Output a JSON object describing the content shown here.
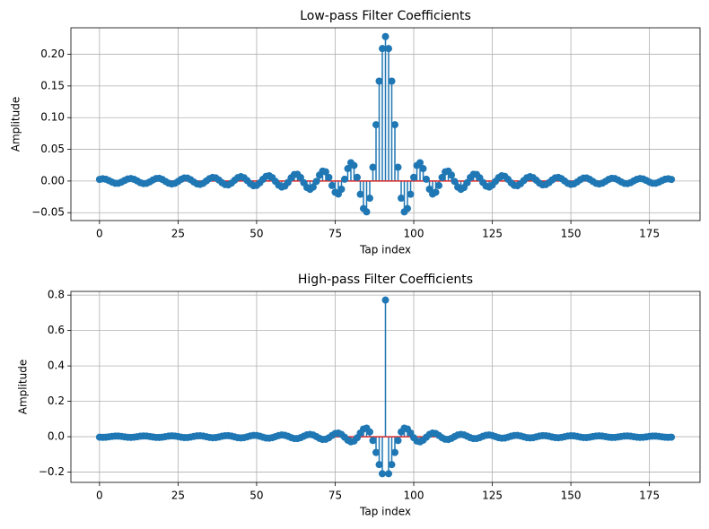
{
  "chart_data": [
    {
      "type": "stem",
      "title": "Low-pass Filter Coefficients",
      "xlabel": "Tap index",
      "ylabel": "Amplitude",
      "x": [
        0,
        1,
        2,
        3,
        4,
        5,
        6,
        7,
        8,
        9,
        10,
        11,
        12,
        13,
        14,
        15,
        16,
        17,
        18,
        19,
        20,
        21,
        22,
        23,
        24,
        25,
        26,
        27,
        28,
        29,
        30,
        31,
        32,
        33,
        34,
        35,
        36,
        37,
        38,
        39,
        40,
        41,
        42,
        43,
        44,
        45,
        46,
        47,
        48,
        49,
        50,
        51,
        52,
        53,
        54,
        55,
        56,
        57,
        58,
        59,
        60,
        61,
        62,
        63,
        64,
        65,
        66,
        67,
        68,
        69,
        70,
        71,
        72,
        73,
        74,
        75,
        76,
        77,
        78,
        79,
        80,
        81,
        82,
        83,
        84,
        85,
        86,
        87,
        88,
        89,
        90,
        91,
        92,
        93,
        94,
        95,
        96,
        97,
        98,
        99,
        100,
        101,
        102,
        103,
        104,
        105,
        106,
        107,
        108,
        109,
        110,
        111,
        112,
        113,
        114,
        115,
        116,
        117,
        118,
        119,
        120,
        121,
        122,
        123,
        124,
        125,
        126,
        127,
        128,
        129,
        130,
        131,
        132,
        133,
        134,
        135,
        136,
        137,
        138,
        139,
        140,
        141,
        142,
        143,
        144,
        145,
        146,
        147,
        148,
        149,
        150,
        151,
        152,
        153,
        154,
        155,
        156,
        157,
        158,
        159,
        160,
        161,
        162,
        163,
        164,
        165,
        166,
        167,
        168,
        169,
        170,
        171,
        172,
        173,
        174,
        175,
        176,
        177,
        178,
        179,
        180,
        181,
        182
      ],
      "values": [
        0.0025,
        0.0035,
        0.0028,
        0.0007,
        -0.0018,
        -0.0035,
        -0.0035,
        -0.0017,
        0.0009,
        0.0032,
        0.0039,
        0.0027,
        0.0002,
        -0.0026,
        -0.0041,
        -0.0036,
        -0.0013,
        0.0017,
        0.0039,
        0.0043,
        0.0025,
        -0.0006,
        -0.0034,
        -0.0047,
        -0.0036,
        -0.0007,
        0.0026,
        0.0048,
        0.0046,
        0.0021,
        -0.0015,
        -0.0045,
        -0.0053,
        -0.0036,
        0.0001,
        0.0038,
        0.0057,
        0.0049,
        0.0016,
        -0.0027,
        -0.0057,
        -0.0061,
        -0.0033,
        0.0012,
        0.0053,
        0.0069,
        0.0052,
        0.0007,
        -0.0043,
        -0.0074,
        -0.0069,
        -0.0029,
        0.0027,
        0.0073,
        0.0084,
        0.0054,
        -0.0006,
        -0.0066,
        -0.0096,
        -0.008,
        -0.0022,
        0.0051,
        0.0103,
        0.0106,
        0.0055,
        -0.0027,
        -0.0103,
        -0.0132,
        -0.0096,
        -0.0007,
        0.0094,
        0.0156,
        0.0145,
        0.0057,
        -0.0071,
        -0.0178,
        -0.0206,
        -0.0129,
        0.0028,
        0.0196,
        0.0289,
        0.0245,
        0.0058,
        -0.0209,
        -0.0434,
        -0.0486,
        -0.0271,
        0.0217,
        0.0889,
        0.1576,
        0.209,
        0.228,
        0.209,
        0.1576,
        0.0889,
        0.0217,
        -0.0271,
        -0.0486,
        -0.0434,
        -0.0209,
        0.0058,
        0.0245,
        0.0289,
        0.0196,
        0.0028,
        -0.0129,
        -0.0206,
        -0.0178,
        -0.0071,
        0.0057,
        0.0145,
        0.0156,
        0.0094,
        -0.0007,
        -0.0096,
        -0.0132,
        -0.0103,
        -0.0027,
        0.0055,
        0.0106,
        0.0103,
        0.0051,
        -0.0022,
        -0.008,
        -0.0096,
        -0.0066,
        -0.0006,
        0.0054,
        0.0084,
        0.0073,
        0.0027,
        -0.0029,
        -0.0069,
        -0.0074,
        -0.0043,
        0.0007,
        0.0052,
        0.0069,
        0.0053,
        0.0012,
        -0.0033,
        -0.0061,
        -0.0057,
        -0.0027,
        0.0016,
        0.0049,
        0.0057,
        0.0038,
        0.0001,
        -0.0036,
        -0.0053,
        -0.0045,
        -0.0015,
        0.0021,
        0.0046,
        0.0048,
        0.0026,
        -0.0007,
        -0.0036,
        -0.0047,
        -0.0034,
        -0.0006,
        0.0025,
        0.0043,
        0.0039,
        0.0017,
        -0.0013,
        -0.0036,
        -0.0041,
        -0.0026,
        0.0002,
        0.0027,
        0.0039,
        0.0032,
        0.0009,
        -0.0017,
        -0.0035,
        -0.0035,
        -0.0018,
        0.0007,
        0.0028,
        0.0035,
        0.0025
      ],
      "color": "#1f77b4",
      "baseline_color": "#d62728",
      "xlim": [
        -9.1,
        191.1
      ],
      "ylim": [
        -0.0624,
        0.2418
      ],
      "xticks": [
        0,
        25,
        50,
        75,
        100,
        125,
        150,
        175
      ],
      "yticks": [
        {
          "value": -0.05,
          "label": "−0.05"
        },
        {
          "value": 0,
          "label": "0.00"
        },
        {
          "value": 0.05,
          "label": "0.05"
        },
        {
          "value": 0.1,
          "label": "0.10"
        },
        {
          "value": 0.15,
          "label": "0.15"
        },
        {
          "value": 0.2,
          "label": "0.20"
        }
      ],
      "grid": true
    },
    {
      "type": "stem",
      "title": "High-pass Filter Coefficients",
      "xlabel": "Tap index",
      "ylabel": "Amplitude",
      "x": [
        0,
        1,
        2,
        3,
        4,
        5,
        6,
        7,
        8,
        9,
        10,
        11,
        12,
        13,
        14,
        15,
        16,
        17,
        18,
        19,
        20,
        21,
        22,
        23,
        24,
        25,
        26,
        27,
        28,
        29,
        30,
        31,
        32,
        33,
        34,
        35,
        36,
        37,
        38,
        39,
        40,
        41,
        42,
        43,
        44,
        45,
        46,
        47,
        48,
        49,
        50,
        51,
        52,
        53,
        54,
        55,
        56,
        57,
        58,
        59,
        60,
        61,
        62,
        63,
        64,
        65,
        66,
        67,
        68,
        69,
        70,
        71,
        72,
        73,
        74,
        75,
        76,
        77,
        78,
        79,
        80,
        81,
        82,
        83,
        84,
        85,
        86,
        87,
        88,
        89,
        90,
        91,
        92,
        93,
        94,
        95,
        96,
        97,
        98,
        99,
        100,
        101,
        102,
        103,
        104,
        105,
        106,
        107,
        108,
        109,
        110,
        111,
        112,
        113,
        114,
        115,
        116,
        117,
        118,
        119,
        120,
        121,
        122,
        123,
        124,
        125,
        126,
        127,
        128,
        129,
        130,
        131,
        132,
        133,
        134,
        135,
        136,
        137,
        138,
        139,
        140,
        141,
        142,
        143,
        144,
        145,
        146,
        147,
        148,
        149,
        150,
        151,
        152,
        153,
        154,
        155,
        156,
        157,
        158,
        159,
        160,
        161,
        162,
        163,
        164,
        165,
        166,
        167,
        168,
        169,
        170,
        171,
        172,
        173,
        174,
        175,
        176,
        177,
        178,
        179,
        180,
        181,
        182
      ],
      "values": [
        -0.0025,
        -0.0035,
        -0.0028,
        -0.0007,
        0.0018,
        0.0035,
        0.0035,
        0.0017,
        -0.0009,
        -0.0032,
        -0.0039,
        -0.0027,
        -0.0002,
        0.0026,
        0.0041,
        0.0036,
        0.0013,
        -0.0017,
        -0.0039,
        -0.0043,
        -0.0025,
        0.0006,
        0.0034,
        0.0047,
        0.0036,
        0.0007,
        -0.0026,
        -0.0048,
        -0.0046,
        -0.0021,
        0.0015,
        0.0045,
        0.0053,
        0.0036,
        -0.0001,
        -0.0038,
        -0.0057,
        -0.0049,
        -0.0016,
        0.0027,
        0.0057,
        0.0061,
        0.0033,
        -0.0012,
        -0.0053,
        -0.0069,
        -0.0052,
        -0.0007,
        0.0043,
        0.0074,
        0.0069,
        0.0029,
        -0.0027,
        -0.0073,
        -0.0084,
        -0.0054,
        0.0006,
        0.0066,
        0.0096,
        0.008,
        0.0022,
        -0.0051,
        -0.0103,
        -0.0106,
        -0.0055,
        0.0027,
        0.0103,
        0.0132,
        0.0096,
        0.0007,
        -0.0094,
        -0.0156,
        -0.0145,
        -0.0057,
        0.0071,
        0.0178,
        0.0206,
        0.0129,
        -0.0028,
        -0.0196,
        -0.0289,
        -0.0245,
        -0.0058,
        0.0209,
        0.0434,
        0.0486,
        0.0271,
        -0.0217,
        -0.0889,
        -0.1576,
        -0.209,
        0.772,
        -0.209,
        -0.1576,
        -0.0889,
        -0.0217,
        0.0271,
        0.0486,
        0.0434,
        0.0209,
        -0.0058,
        -0.0245,
        -0.0289,
        -0.0196,
        -0.0028,
        0.0129,
        0.0206,
        0.0178,
        0.0071,
        -0.0057,
        -0.0145,
        -0.0156,
        -0.0094,
        0.0007,
        0.0096,
        0.0132,
        0.0103,
        0.0027,
        -0.0055,
        -0.0106,
        -0.0103,
        -0.0051,
        0.0022,
        0.008,
        0.0096,
        0.0066,
        0.0006,
        -0.0054,
        -0.0084,
        -0.0073,
        -0.0027,
        0.0029,
        0.0069,
        0.0074,
        0.0043,
        -0.0007,
        -0.0052,
        -0.0069,
        -0.0053,
        -0.0012,
        0.0033,
        0.0061,
        0.0057,
        0.0027,
        -0.0016,
        -0.0049,
        -0.0057,
        -0.0038,
        -0.0001,
        0.0036,
        0.0053,
        0.0045,
        0.0015,
        -0.0021,
        -0.0046,
        -0.0048,
        -0.0026,
        0.0007,
        0.0036,
        0.0047,
        0.0034,
        0.0006,
        -0.0025,
        -0.0043,
        -0.0039,
        -0.0017,
        0.0013,
        0.0036,
        0.0041,
        0.0026,
        -0.0002,
        -0.0027,
        -0.0039,
        -0.0032,
        -0.0009,
        0.0017,
        0.0035,
        0.0035,
        0.0018,
        -0.0007,
        -0.0028,
        -0.0035,
        -0.0025
      ],
      "color": "#1f77b4",
      "baseline_color": "#d62728",
      "xlim": [
        -9.1,
        191.1
      ],
      "ylim": [
        -0.258,
        0.821
      ],
      "xticks": [
        0,
        25,
        50,
        75,
        100,
        125,
        150,
        175
      ],
      "yticks": [
        {
          "value": -0.2,
          "label": "−0.2"
        },
        {
          "value": 0,
          "label": "0.0"
        },
        {
          "value": 0.2,
          "label": "0.2"
        },
        {
          "value": 0.4,
          "label": "0.4"
        },
        {
          "value": 0.6,
          "label": "0.6"
        },
        {
          "value": 0.8,
          "label": "0.8"
        }
      ],
      "grid": true
    }
  ]
}
